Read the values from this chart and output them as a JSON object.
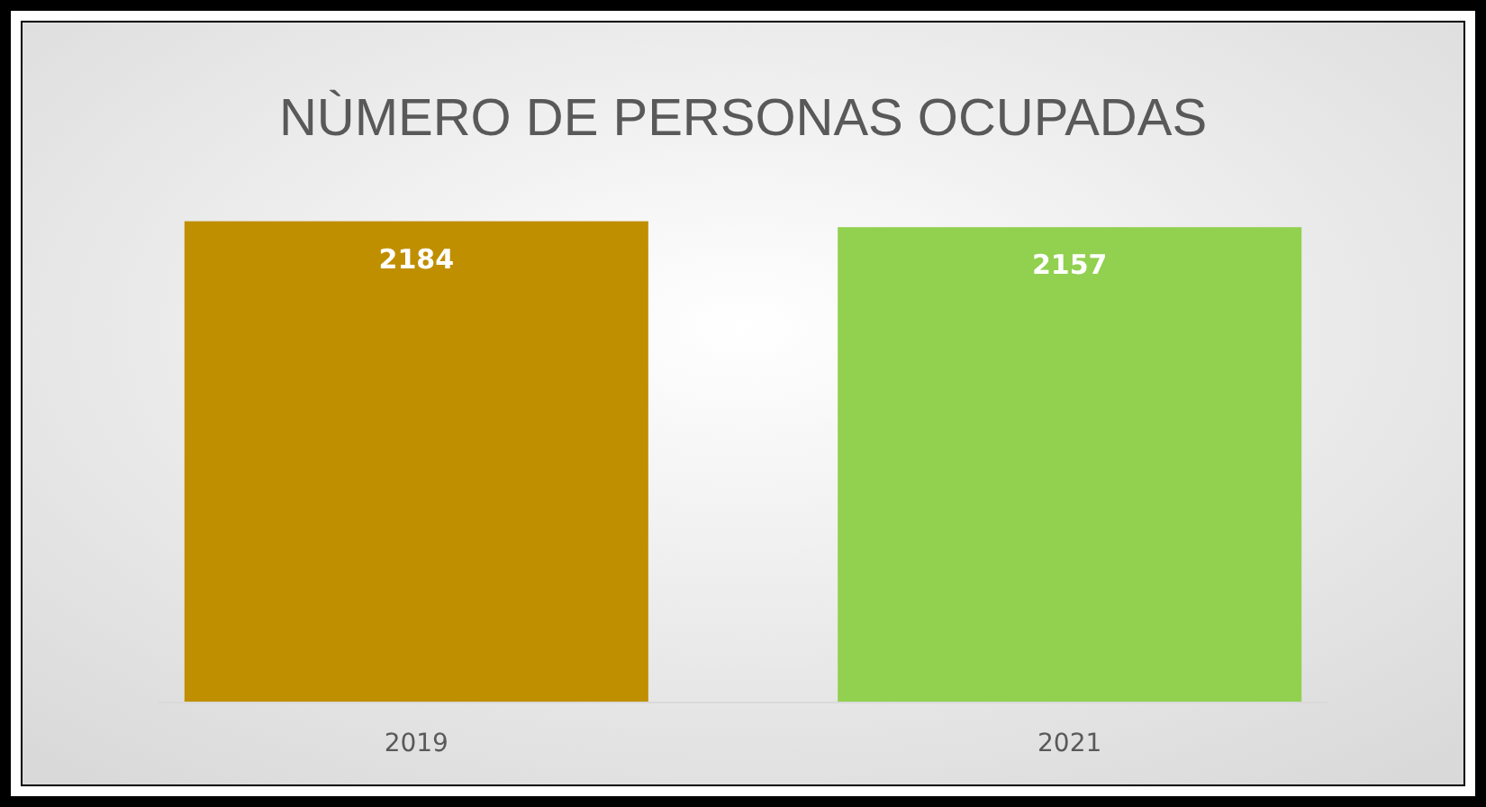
{
  "chart_data": {
    "type": "bar",
    "title": "NÙMERO DE PERSONAS OCUPADAS",
    "categories": [
      "2019",
      "2021"
    ],
    "values": [
      2184,
      2157
    ],
    "colors": [
      "#bf8f00",
      "#92d050"
    ],
    "data_labels": true
  }
}
